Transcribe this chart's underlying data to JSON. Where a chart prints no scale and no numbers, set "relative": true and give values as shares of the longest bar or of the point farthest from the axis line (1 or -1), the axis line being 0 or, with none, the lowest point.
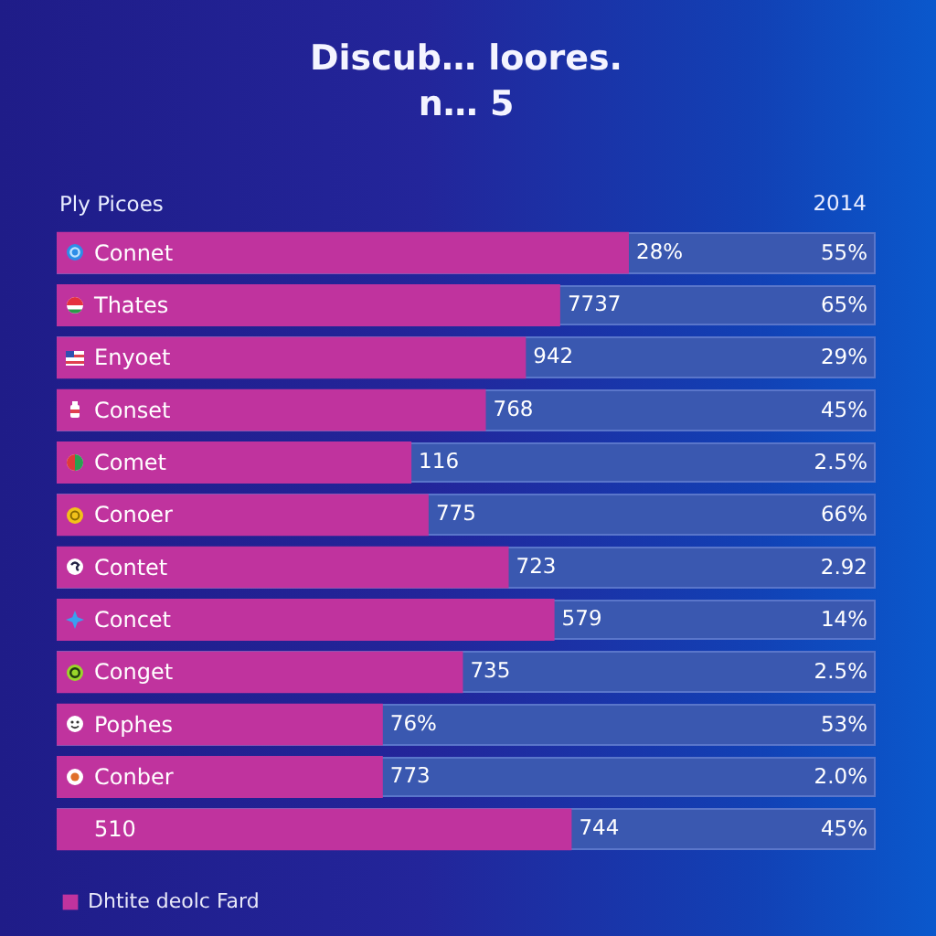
{
  "chart_data": {
    "type": "bar",
    "orientation": "horizontal",
    "relative": true,
    "title": "Discub… loores.",
    "subtitle": "n… 5",
    "ylabel": "Ply Picoes",
    "categories": [
      "Connet",
      "Thates",
      "Enyoet",
      "Conset",
      "Comet",
      "Conoer",
      "Contet",
      "Concet",
      "Conget",
      "Pophes",
      "Conber",
      "510"
    ],
    "y2_categories": [
      "55%",
      "65%",
      "29%",
      "45%",
      "2.5%",
      "66%",
      "2.92",
      "14%",
      "2.5%",
      "53%",
      "2.0%",
      "45%"
    ],
    "series": [
      {
        "name": "Dhtite deolc Fard",
        "color": "#c0339e",
        "values": [
          1,
          0.88,
          0.82,
          0.75,
          0.62,
          0.65,
          0.79,
          0.87,
          0.71,
          0.57,
          0.57,
          0.9
        ]
      }
    ],
    "annotations": [
      "2014",
      {
        "text": "28%",
        "x": 1,
        "y": "Connet"
      },
      {
        "text": "7737",
        "x": 0.88,
        "y": "Thates"
      },
      {
        "text": "942",
        "x": 0.82,
        "y": "Enyoet"
      },
      {
        "text": "768",
        "x": 0.75,
        "y": "Conset"
      },
      {
        "text": "116",
        "x": 0.62,
        "y": "Comet"
      },
      {
        "text": "775",
        "x": 0.65,
        "y": "Conoer"
      },
      {
        "text": "723",
        "x": 0.79,
        "y": "Contet"
      },
      {
        "text": "579",
        "x": 0.87,
        "y": "Concet"
      },
      {
        "text": "735",
        "x": 0.71,
        "y": "Conget"
      },
      {
        "text": "76%",
        "x": 0.57,
        "y": "Pophes"
      },
      {
        "text": "773",
        "x": 0.57,
        "y": "Conber"
      },
      {
        "text": "744",
        "x": 0.9,
        "y": "510"
      }
    ],
    "legend": "bottom left"
  }
}
